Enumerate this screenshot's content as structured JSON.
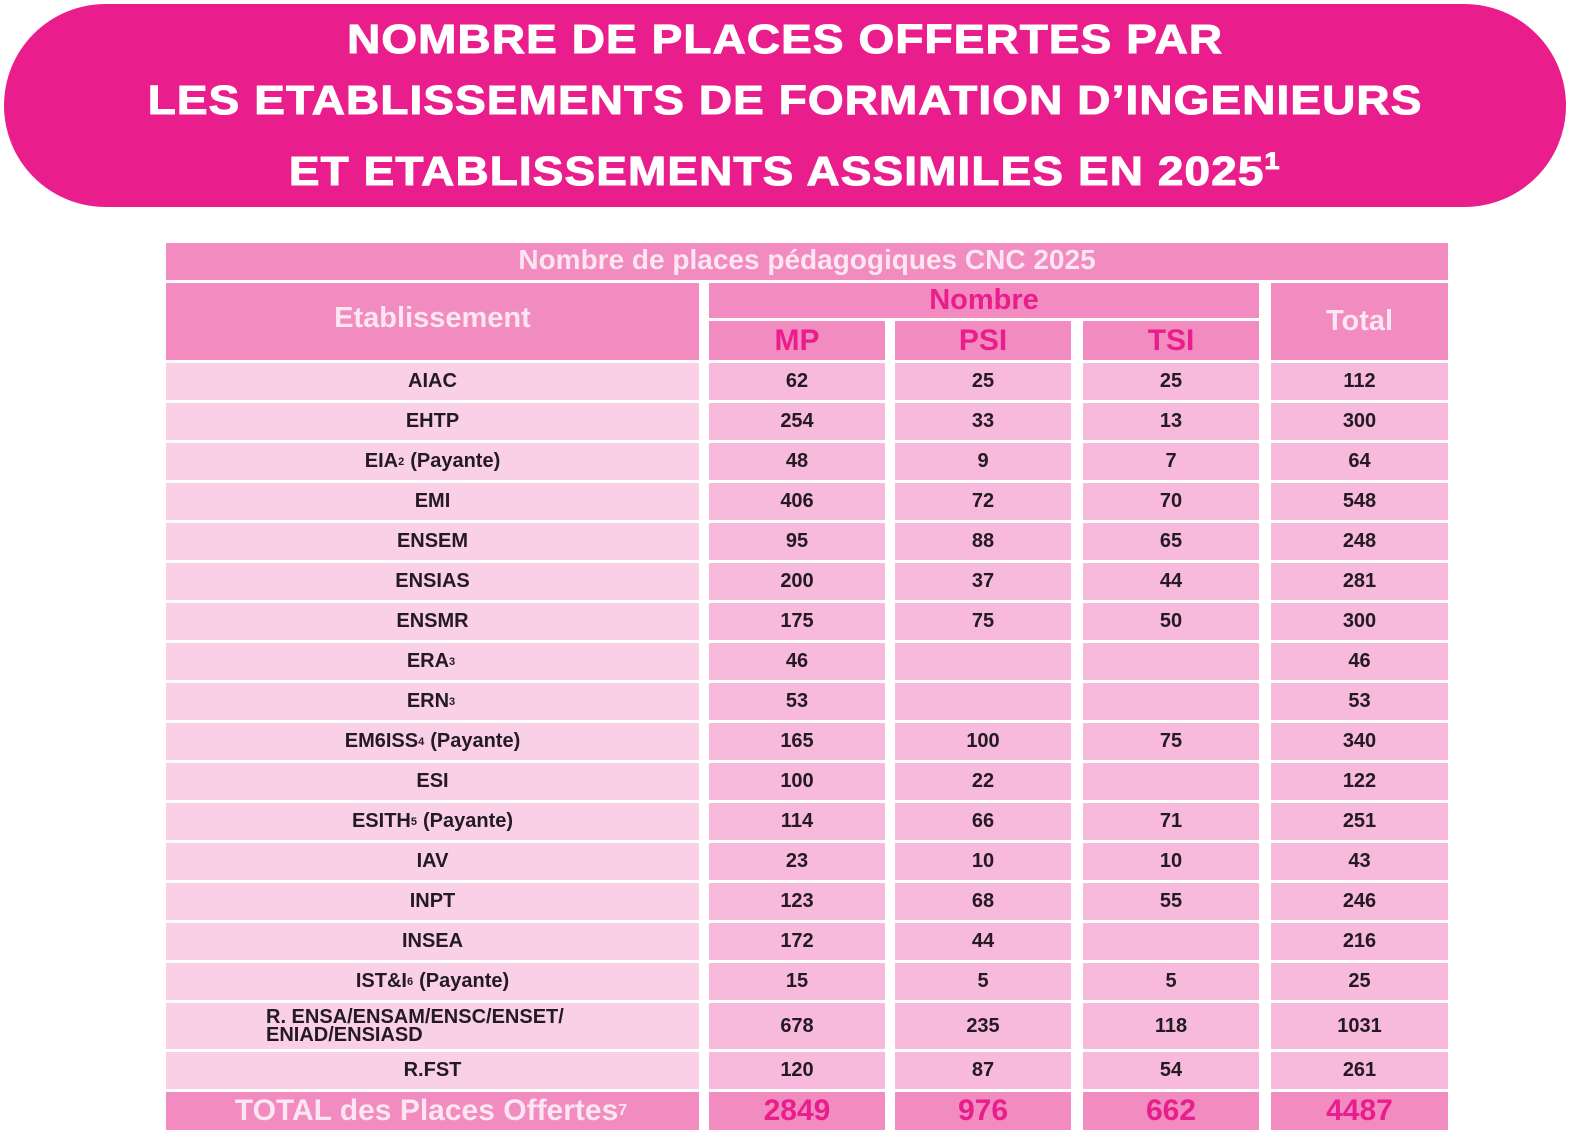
{
  "banner": {
    "line1": "NOMBRE DE PLACES OFFERTES PAR",
    "line2": "LES ETABLISSEMENTS DE FORMATION D’INGENIEURS",
    "line3": "ET ETABLISSEMENTS ASSIMILES EN 2025",
    "line3_sup": "1"
  },
  "colors": {
    "banner_bg": "#e91e8c",
    "header_bg": "#f28bbf",
    "name_cell_bg": "#f9d0e5",
    "value_cell_bg": "#f7b9dc",
    "accent_text": "#e91e8c"
  },
  "table": {
    "caption": "Nombre de places pédagogiques CNC 2025",
    "headers": {
      "etablissement": "Etablissement",
      "nombre": "Nombre",
      "mp": "MP",
      "psi": "PSI",
      "tsi": "TSI",
      "total": "Total"
    },
    "rows": [
      {
        "name": "AIAC",
        "sup": "",
        "suffix": "",
        "mp": "62",
        "psi": "25",
        "tsi": "25",
        "total": "112"
      },
      {
        "name": "EHTP",
        "sup": "",
        "suffix": "",
        "mp": "254",
        "psi": "33",
        "tsi": "13",
        "total": "300"
      },
      {
        "name": "EIA",
        "sup": "2",
        "suffix": "(Payante)",
        "mp": "48",
        "psi": "9",
        "tsi": "7",
        "total": "64"
      },
      {
        "name": "EMI",
        "sup": "",
        "suffix": "",
        "mp": "406",
        "psi": "72",
        "tsi": "70",
        "total": "548"
      },
      {
        "name": "ENSEM",
        "sup": "",
        "suffix": "",
        "mp": "95",
        "psi": "88",
        "tsi": "65",
        "total": "248"
      },
      {
        "name": "ENSIAS",
        "sup": "",
        "suffix": "",
        "mp": "200",
        "psi": "37",
        "tsi": "44",
        "total": "281"
      },
      {
        "name": "ENSMR",
        "sup": "",
        "suffix": "",
        "mp": "175",
        "psi": "75",
        "tsi": "50",
        "total": "300"
      },
      {
        "name": "ERA",
        "sup": "3",
        "suffix": "",
        "mp": "46",
        "psi": "",
        "tsi": "",
        "total": "46"
      },
      {
        "name": "ERN",
        "sup": "3",
        "suffix": "",
        "mp": "53",
        "psi": "",
        "tsi": "",
        "total": "53"
      },
      {
        "name": "EM6ISS",
        "sup": "4",
        "suffix": "(Payante)",
        "mp": "165",
        "psi": "100",
        "tsi": "75",
        "total": "340"
      },
      {
        "name": "ESI",
        "sup": "",
        "suffix": "",
        "mp": "100",
        "psi": "22",
        "tsi": "",
        "total": "122"
      },
      {
        "name": "ESITH",
        "sup": "5",
        "suffix": "(Payante)",
        "mp": "114",
        "psi": "66",
        "tsi": "71",
        "total": "251"
      },
      {
        "name": "IAV",
        "sup": "",
        "suffix": "",
        "mp": "23",
        "psi": "10",
        "tsi": "10",
        "total": "43"
      },
      {
        "name": "INPT",
        "sup": "",
        "suffix": "",
        "mp": "123",
        "psi": "68",
        "tsi": "55",
        "total": "246"
      },
      {
        "name": "INSEA",
        "sup": "",
        "suffix": "",
        "mp": "172",
        "psi": "44",
        "tsi": "",
        "total": "216"
      },
      {
        "name": "IST&I",
        "sup": "6",
        "suffix": "(Payante)",
        "mp": "15",
        "psi": "5",
        "tsi": "5",
        "total": "25"
      },
      {
        "name": "R. ENSA/ENSAM/ENSC/ENSET/",
        "name2": "ENIAD/ENSIASD",
        "sup": "",
        "suffix": "",
        "mp": "678",
        "psi": "235",
        "tsi": "118",
        "total": "1031"
      },
      {
        "name": "R.FST",
        "sup": "",
        "suffix": "",
        "mp": "120",
        "psi": "87",
        "tsi": "54",
        "total": "261"
      }
    ],
    "total_row": {
      "label": "TOTAL des Places Offertes",
      "sup": "7",
      "mp": "2849",
      "psi": "976",
      "tsi": "662",
      "total": "4487"
    }
  }
}
